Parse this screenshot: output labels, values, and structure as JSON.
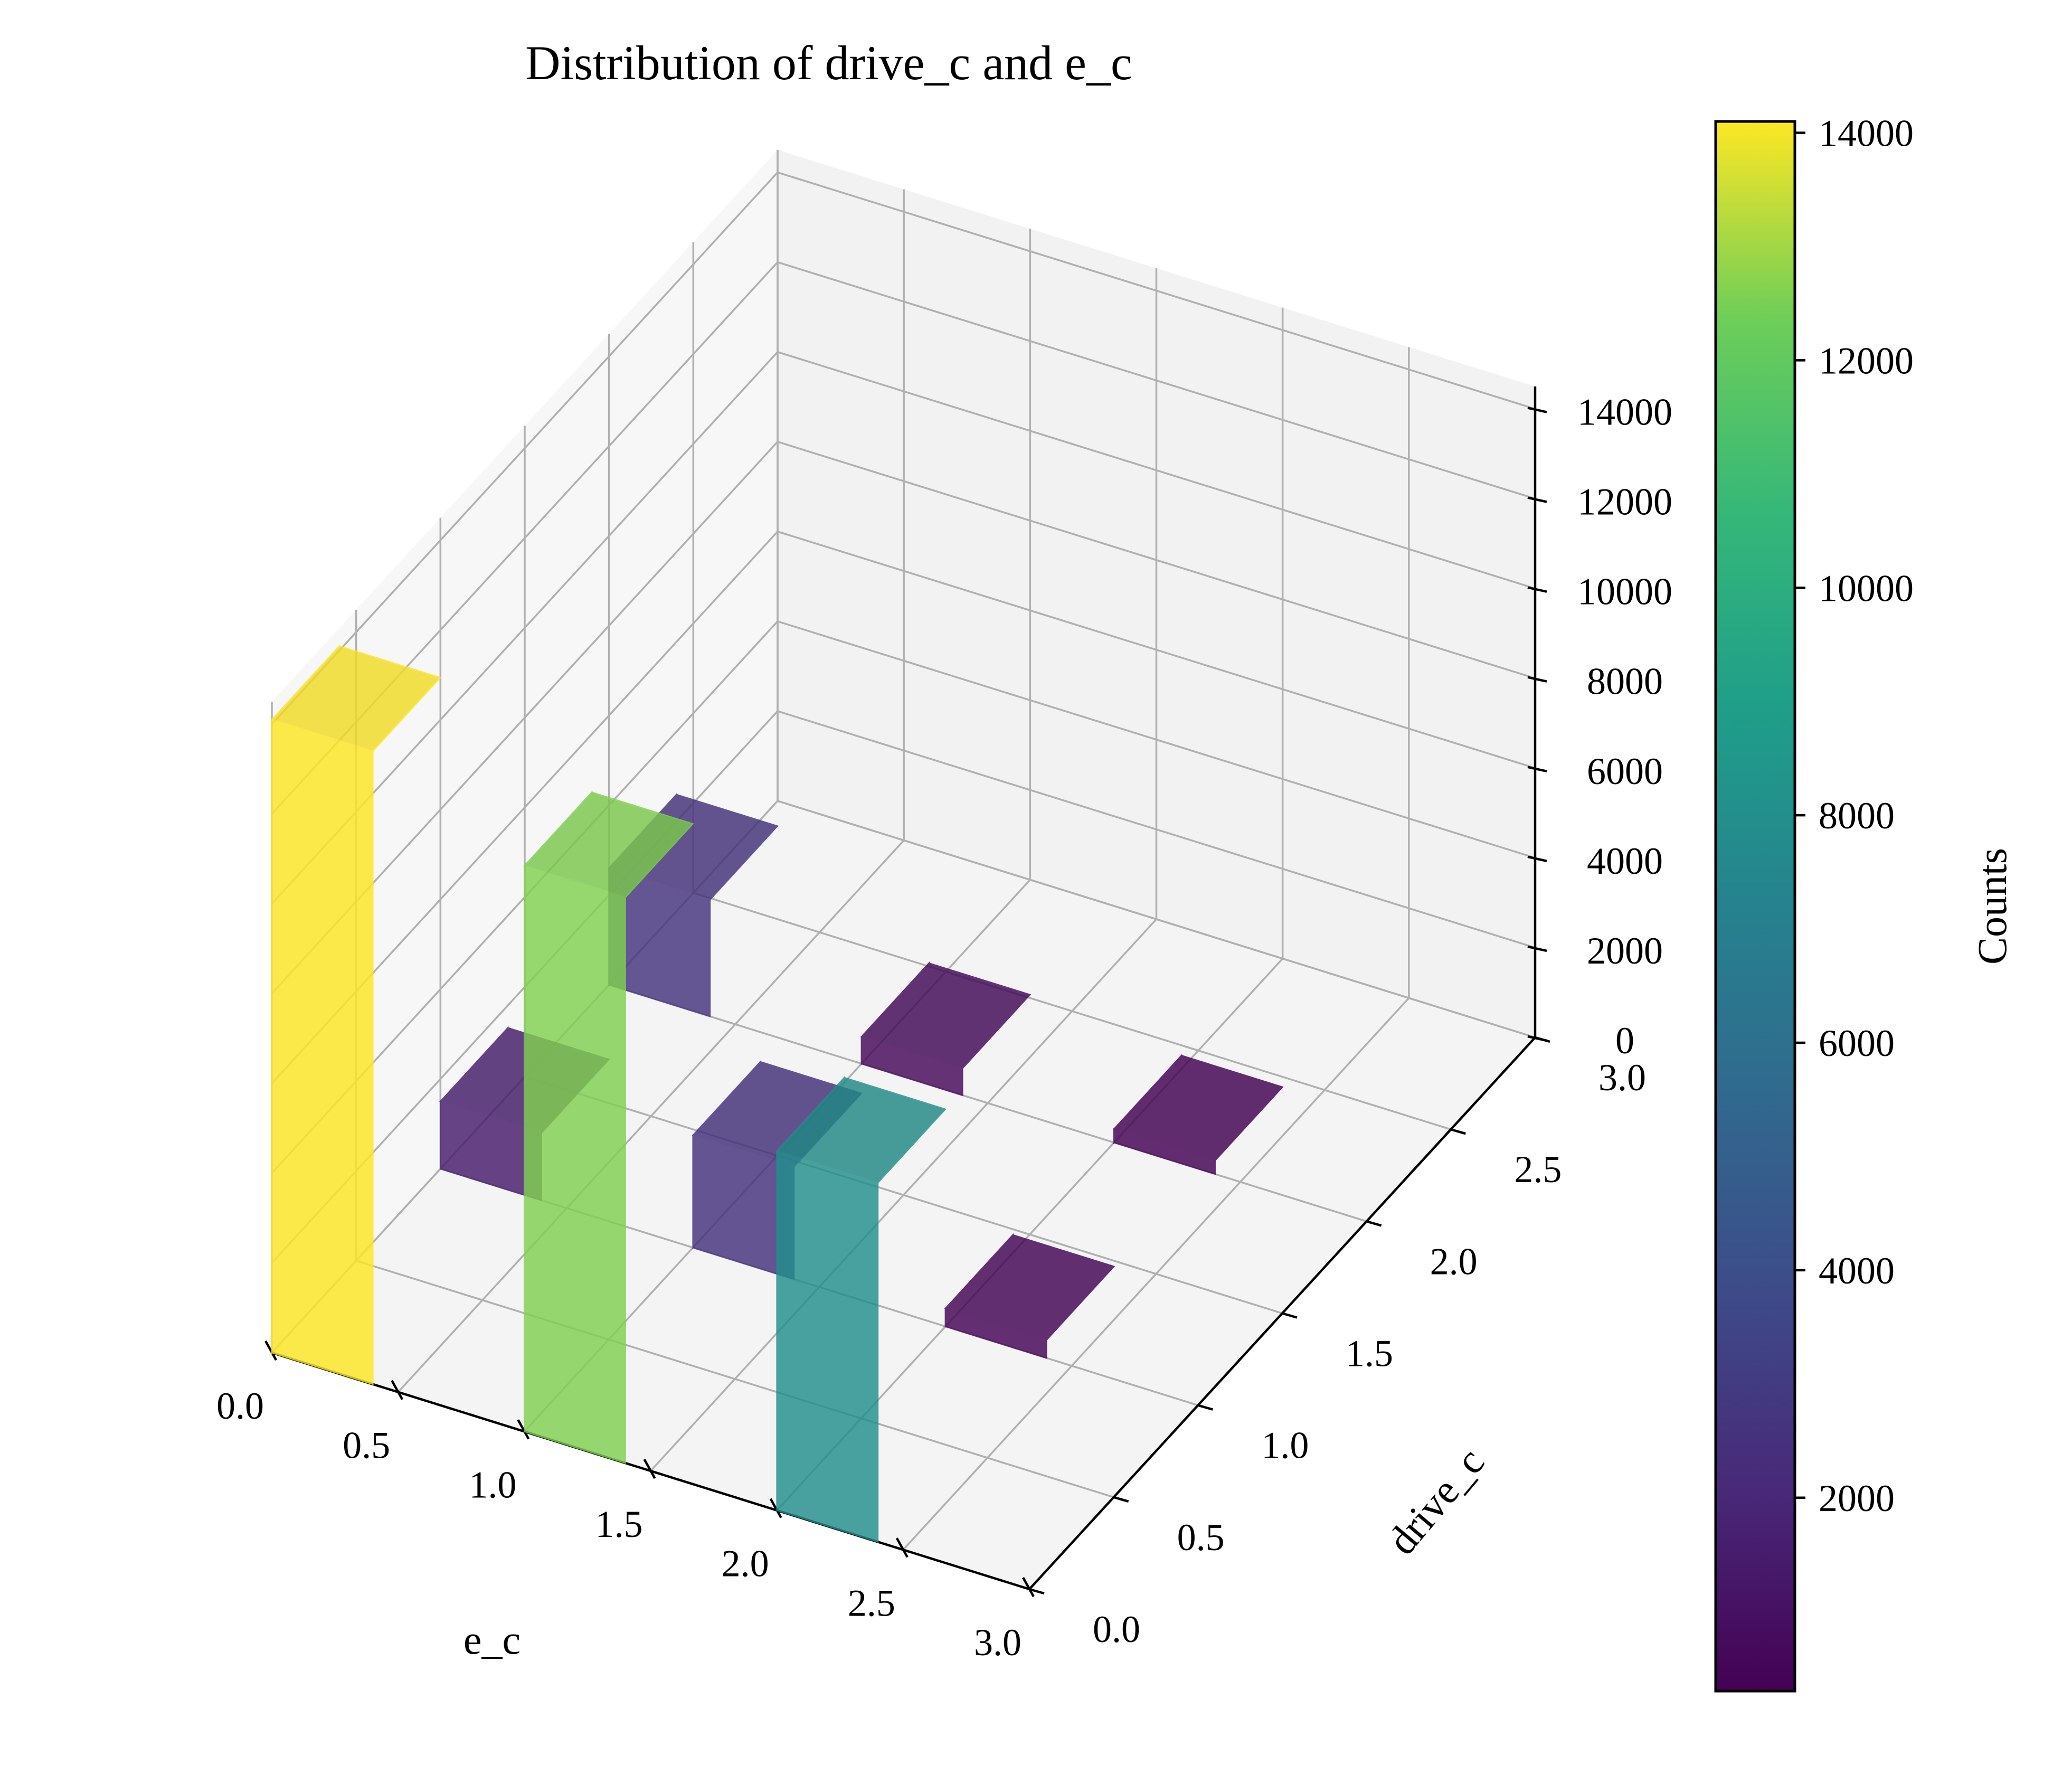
{
  "chart_data": {
    "type": "bar",
    "title": "Distribution of drive_c and e_c",
    "xlabel": "e_c",
    "ylabel": "drive_c",
    "zlabel": "",
    "x_ticks": [
      "0.0",
      "0.5",
      "1.0",
      "1.5",
      "2.0",
      "2.5",
      "3.0"
    ],
    "y_ticks": [
      "0.0",
      "0.5",
      "1.0",
      "1.5",
      "2.0",
      "2.5",
      "3.0"
    ],
    "z_ticks": [
      "0",
      "2000",
      "4000",
      "6000",
      "8000",
      "10000",
      "12000",
      "14000"
    ],
    "xlim": [
      0,
      3
    ],
    "ylim": [
      0,
      3
    ],
    "zlim": [
      0,
      14500
    ],
    "bars": [
      {
        "e_c": 0,
        "drive_c": 0,
        "count": 14100
      },
      {
        "e_c": 1,
        "drive_c": 0,
        "count": 12600
      },
      {
        "e_c": 2,
        "drive_c": 0,
        "count": 8000
      },
      {
        "e_c": 0,
        "drive_c": 1,
        "count": 1500
      },
      {
        "e_c": 1,
        "drive_c": 1,
        "count": 2500
      },
      {
        "e_c": 2,
        "drive_c": 1,
        "count": 400
      },
      {
        "e_c": 0,
        "drive_c": 2,
        "count": 2600
      },
      {
        "e_c": 1,
        "drive_c": 2,
        "count": 600
      },
      {
        "e_c": 2,
        "drive_c": 2,
        "count": 300
      }
    ],
    "colorbar": {
      "label": "Counts",
      "ticks": [
        "2000",
        "4000",
        "6000",
        "8000",
        "10000",
        "12000",
        "14000"
      ],
      "min": 300,
      "max": 14100,
      "colormap": "viridis"
    },
    "grid": true
  }
}
